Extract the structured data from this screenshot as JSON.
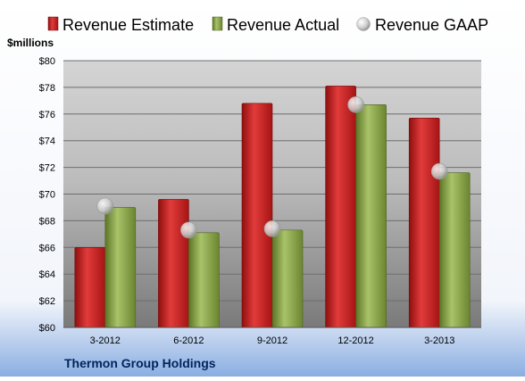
{
  "chart_data": {
    "type": "bar",
    "unit_label": "$millions",
    "company": "Thermon Group Holdings",
    "categories": [
      "3-2012",
      "6-2012",
      "9-2012",
      "12-2012",
      "3-2013"
    ],
    "y_ticks": [
      "$60",
      "$62",
      "$64",
      "$66",
      "$68",
      "$70",
      "$72",
      "$74",
      "$76",
      "$78",
      "$80"
    ],
    "ylim": [
      60,
      80
    ],
    "y_tick_step": 2,
    "grid": true,
    "legend_position": "top",
    "series": [
      {
        "name": "Revenue Estimate",
        "kind": "bar",
        "color": "#cc1f1f",
        "values": [
          66.0,
          69.6,
          76.8,
          78.1,
          75.7
        ]
      },
      {
        "name": "Revenue Actual",
        "kind": "bar",
        "color": "#7f9a3c",
        "values": [
          69.0,
          67.1,
          67.3,
          76.7,
          71.6
        ]
      },
      {
        "name": "Revenue GAAP",
        "kind": "marker",
        "color": "#c8c8c8",
        "values": [
          69.1,
          67.3,
          67.4,
          76.7,
          71.7
        ]
      }
    ]
  }
}
